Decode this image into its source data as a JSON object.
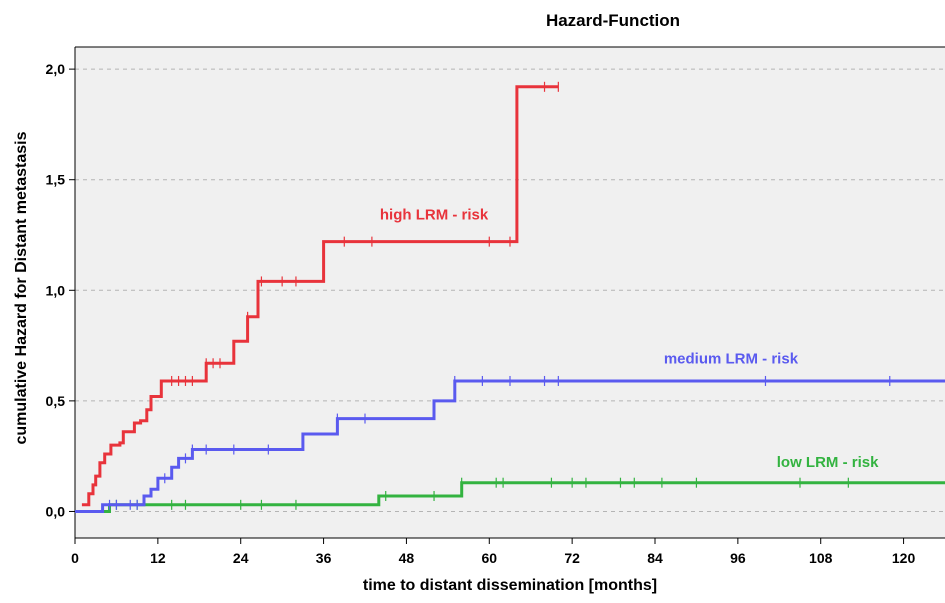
{
  "chart_data": {
    "type": "line",
    "step": true,
    "title": "Hazard-Function",
    "xlabel": "time to distant dissemination [months]",
    "ylabel": "cumulative Hazard for Distant metastasis",
    "xlim": [
      0,
      126
    ],
    "ylim": [
      -0.12,
      2.1
    ],
    "xticks": [
      0,
      12,
      24,
      36,
      48,
      60,
      72,
      84,
      96,
      108,
      120
    ],
    "yticks": [
      0.0,
      0.5,
      1.0,
      1.5,
      2.0
    ],
    "ytick_labels": [
      "0,0",
      "0,5",
      "1,0",
      "1,5",
      "2,0"
    ],
    "grid": "horizontal-dashed",
    "plot_background": "#f0f0f0",
    "series": [
      {
        "name": "high LRM - risk",
        "color": "#e8333b",
        "label_pos": [
          52,
          1.32
        ],
        "steps": [
          [
            1,
            0.03
          ],
          [
            2,
            0.08
          ],
          [
            2.6,
            0.12
          ],
          [
            3,
            0.16
          ],
          [
            3.6,
            0.22
          ],
          [
            4.3,
            0.26
          ],
          [
            5.2,
            0.3
          ],
          [
            6.5,
            0.31
          ],
          [
            7,
            0.36
          ],
          [
            8,
            0.36
          ],
          [
            8.6,
            0.4
          ],
          [
            9.5,
            0.41
          ],
          [
            10.4,
            0.46
          ],
          [
            11,
            0.52
          ],
          [
            12,
            0.52
          ],
          [
            12.5,
            0.59
          ],
          [
            13.5,
            0.59
          ],
          [
            19,
            0.67
          ],
          [
            23,
            0.77
          ],
          [
            25,
            0.88
          ],
          [
            26.5,
            1.04
          ],
          [
            36,
            1.22
          ],
          [
            64,
            1.92
          ],
          [
            70,
            1.92
          ]
        ],
        "censored": [
          14,
          15,
          16,
          17,
          19,
          20,
          21,
          25,
          27,
          30,
          32,
          39,
          43,
          60,
          63,
          68,
          70
        ]
      },
      {
        "name": "medium LRM - risk",
        "color": "#5a5aef",
        "label_pos": [
          95,
          0.67
        ],
        "steps": [
          [
            0,
            0.0
          ],
          [
            4,
            0.03
          ],
          [
            10,
            0.07
          ],
          [
            11,
            0.1
          ],
          [
            12,
            0.15
          ],
          [
            14,
            0.2
          ],
          [
            15,
            0.24
          ],
          [
            17,
            0.28
          ],
          [
            33,
            0.35
          ],
          [
            38,
            0.42
          ],
          [
            52,
            0.5
          ],
          [
            55,
            0.59
          ],
          [
            126,
            0.59
          ]
        ],
        "censored": [
          5,
          6,
          8,
          9,
          13,
          16,
          17,
          19,
          23,
          28,
          38,
          42,
          55,
          59,
          63,
          68,
          70,
          100,
          118
        ]
      },
      {
        "name": "low LRM - risk",
        "color": "#33b340",
        "label_pos": [
          109,
          0.2
        ],
        "steps": [
          [
            0,
            0.0
          ],
          [
            5,
            0.03
          ],
          [
            44,
            0.07
          ],
          [
            56,
            0.13
          ],
          [
            126,
            0.13
          ]
        ],
        "censored": [
          6,
          9,
          14,
          16,
          24,
          27,
          32,
          45,
          52,
          56,
          61,
          62,
          69,
          72,
          74,
          79,
          81,
          85,
          90,
          105,
          112
        ]
      }
    ]
  }
}
